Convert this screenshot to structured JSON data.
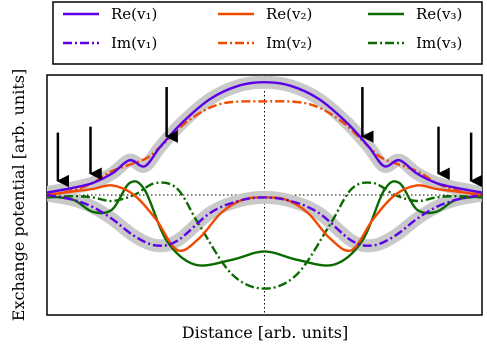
{
  "chart_data": {
    "type": "line",
    "xlabel": "Distance [arb. units]",
    "ylabel": "Exchange potential [arb. units]",
    "xlim": [
      -1.0,
      1.0
    ],
    "ylim": [
      -1.0,
      1.0
    ],
    "grid": false,
    "reference_lines": [
      {
        "orientation": "vertical",
        "x": 0.0
      },
      {
        "orientation": "horizontal",
        "y": 0.0
      }
    ],
    "legend": {
      "placement": "top-outside",
      "columns": 3,
      "entries": [
        {
          "label": "Re(v₁)",
          "color": "#5b00e8",
          "style": "solid"
        },
        {
          "label": "Re(v₂)",
          "color": "#f24a00",
          "style": "solid"
        },
        {
          "label": "Re(v₃)",
          "color": "#0b6a00",
          "style": "solid"
        },
        {
          "label": "Im(v₁)",
          "color": "#5b00e8",
          "style": "dashdot"
        },
        {
          "label": "Im(v₂)",
          "color": "#f24a00",
          "style": "dashdot"
        },
        {
          "label": "Im(v₃)",
          "color": "#0b6a00",
          "style": "dashdot"
        }
      ]
    },
    "highlight_color": "#c9c9c9",
    "series": [
      {
        "key": "re1",
        "color": "#5b00e8",
        "style": "solid",
        "highlight": true,
        "points": [
          [
            -1.0,
            0.02
          ],
          [
            -0.88,
            0.06
          ],
          [
            -0.79,
            0.1
          ],
          [
            -0.7,
            0.18
          ],
          [
            -0.62,
            0.29
          ],
          [
            -0.55,
            0.24
          ],
          [
            -0.48,
            0.4
          ],
          [
            -0.38,
            0.6
          ],
          [
            -0.25,
            0.8
          ],
          [
            -0.12,
            0.91
          ],
          [
            0.0,
            0.94
          ],
          [
            0.12,
            0.91
          ],
          [
            0.25,
            0.8
          ],
          [
            0.38,
            0.6
          ],
          [
            0.48,
            0.4
          ],
          [
            0.55,
            0.24
          ],
          [
            0.62,
            0.29
          ],
          [
            0.7,
            0.18
          ],
          [
            0.79,
            0.1
          ],
          [
            0.88,
            0.06
          ],
          [
            1.0,
            0.02
          ]
        ]
      },
      {
        "key": "im1",
        "color": "#5b00e8",
        "style": "dashdot",
        "highlight": true,
        "points": [
          [
            -1.0,
            0.0
          ],
          [
            -0.88,
            -0.04
          ],
          [
            -0.79,
            -0.1
          ],
          [
            -0.7,
            -0.2
          ],
          [
            -0.6,
            -0.34
          ],
          [
            -0.5,
            -0.42
          ],
          [
            -0.4,
            -0.38
          ],
          [
            -0.25,
            -0.15
          ],
          [
            -0.12,
            -0.05
          ],
          [
            0.0,
            -0.02
          ],
          [
            0.12,
            -0.05
          ],
          [
            0.25,
            -0.15
          ],
          [
            0.4,
            -0.38
          ],
          [
            0.5,
            -0.42
          ],
          [
            0.6,
            -0.34
          ],
          [
            0.7,
            -0.2
          ],
          [
            0.79,
            -0.1
          ],
          [
            0.88,
            -0.04
          ],
          [
            1.0,
            0.0
          ]
        ]
      },
      {
        "key": "re2",
        "color": "#f24a00",
        "style": "solid",
        "highlight": false,
        "points": [
          [
            -1.0,
            0.0
          ],
          [
            -0.88,
            0.03
          ],
          [
            -0.79,
            0.05
          ],
          [
            -0.7,
            0.08
          ],
          [
            -0.6,
            0.0
          ],
          [
            -0.5,
            -0.2
          ],
          [
            -0.4,
            -0.46
          ],
          [
            -0.3,
            -0.36
          ],
          [
            -0.2,
            -0.15
          ],
          [
            -0.1,
            -0.04
          ],
          [
            0.0,
            -0.02
          ],
          [
            0.1,
            -0.04
          ],
          [
            0.2,
            -0.15
          ],
          [
            0.3,
            -0.36
          ],
          [
            0.4,
            -0.46
          ],
          [
            0.5,
            -0.2
          ],
          [
            0.6,
            0.0
          ],
          [
            0.7,
            0.08
          ],
          [
            0.79,
            0.05
          ],
          [
            0.88,
            0.03
          ],
          [
            1.0,
            0.0
          ]
        ]
      },
      {
        "key": "im2",
        "color": "#f24a00",
        "style": "dashdot",
        "highlight": false,
        "points": [
          [
            -1.0,
            -0.01
          ],
          [
            -0.88,
            0.04
          ],
          [
            -0.79,
            0.1
          ],
          [
            -0.7,
            0.2
          ],
          [
            -0.55,
            0.3
          ],
          [
            -0.48,
            0.4
          ],
          [
            -0.35,
            0.62
          ],
          [
            -0.2,
            0.76
          ],
          [
            0.0,
            0.78
          ],
          [
            0.2,
            0.76
          ],
          [
            0.35,
            0.62
          ],
          [
            0.48,
            0.4
          ],
          [
            0.55,
            0.3
          ],
          [
            0.7,
            0.2
          ],
          [
            0.79,
            0.1
          ],
          [
            0.88,
            0.04
          ],
          [
            1.0,
            -0.01
          ]
        ]
      },
      {
        "key": "re3",
        "color": "#0b6a00",
        "style": "solid",
        "highlight": false,
        "points": [
          [
            -1.0,
            -0.01
          ],
          [
            -0.88,
            -0.04
          ],
          [
            -0.79,
            -0.14
          ],
          [
            -0.7,
            -0.12
          ],
          [
            -0.62,
            0.1
          ],
          [
            -0.55,
            0.04
          ],
          [
            -0.45,
            -0.38
          ],
          [
            -0.32,
            -0.58
          ],
          [
            -0.15,
            -0.54
          ],
          [
            0.0,
            -0.47
          ],
          [
            0.15,
            -0.54
          ],
          [
            0.32,
            -0.58
          ],
          [
            0.45,
            -0.38
          ],
          [
            0.55,
            0.04
          ],
          [
            0.62,
            0.1
          ],
          [
            0.7,
            -0.12
          ],
          [
            0.79,
            -0.14
          ],
          [
            0.88,
            -0.04
          ],
          [
            1.0,
            -0.01
          ]
        ]
      },
      {
        "key": "im3",
        "color": "#0b6a00",
        "style": "dashdot",
        "highlight": false,
        "points": [
          [
            -1.0,
            -0.02
          ],
          [
            -0.88,
            -0.01
          ],
          [
            -0.79,
            -0.02
          ],
          [
            -0.7,
            -0.05
          ],
          [
            -0.6,
            0.0
          ],
          [
            -0.5,
            0.1
          ],
          [
            -0.4,
            0.05
          ],
          [
            -0.3,
            -0.25
          ],
          [
            -0.15,
            -0.66
          ],
          [
            0.0,
            -0.78
          ],
          [
            0.15,
            -0.66
          ],
          [
            0.3,
            -0.25
          ],
          [
            0.4,
            0.05
          ],
          [
            0.5,
            0.1
          ],
          [
            0.6,
            0.0
          ],
          [
            0.7,
            -0.05
          ],
          [
            0.79,
            -0.02
          ],
          [
            0.88,
            -0.01
          ],
          [
            1.0,
            -0.02
          ]
        ]
      }
    ],
    "arrows": [
      {
        "x": -0.95,
        "top": 0.52,
        "tip": 0.1
      },
      {
        "x": -0.8,
        "top": 0.57,
        "tip": 0.16
      },
      {
        "x": -0.45,
        "top": 0.9,
        "tip": 0.47
      },
      {
        "x": 0.45,
        "top": 0.9,
        "tip": 0.47
      },
      {
        "x": 0.8,
        "top": 0.57,
        "tip": 0.16
      },
      {
        "x": 0.95,
        "top": 0.52,
        "tip": 0.1
      }
    ]
  }
}
